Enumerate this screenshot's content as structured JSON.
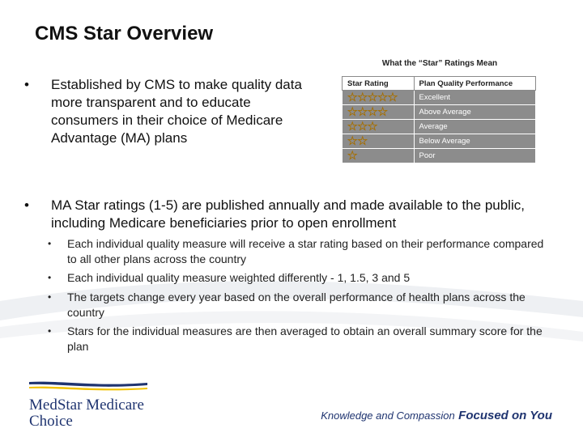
{
  "slide": {
    "title": "CMS Star Overview",
    "bullet_symbol": "•",
    "bullets": [
      {
        "text": "Established by CMS to make quality data more transparent and to educate consumers in their choice of Medicare Advantage (MA) plans"
      },
      {
        "text": "MA Star ratings (1-5) are published annually and made available to the public, including Medicare beneficiaries prior to open enrollment"
      }
    ],
    "sub_bullets": [
      "Each individual quality measure will receive a star rating based on their performance compared to all other plans across the country",
      "Each individual quality measure weighted differently - 1, 1.5, 3 and 5",
      "The targets change every year based on the overall performance of health plans across the country",
      "Stars for the individual measures are then averaged to obtain an overall summary score for the plan"
    ]
  },
  "ratings_table": {
    "heading": "What the “Star” Ratings Mean",
    "col_star": "Star Rating",
    "col_perf": "Plan Quality Performance",
    "star_color": "#f4b400",
    "row_color": "#8c8c8c",
    "rows": [
      {
        "stars": "☆☆☆☆☆",
        "star_count": 5,
        "label": "Excellent"
      },
      {
        "stars": "☆☆☆☆",
        "star_count": 4,
        "label": "Above Average"
      },
      {
        "stars": "☆☆☆",
        "star_count": 3,
        "label": "Average"
      },
      {
        "stars": "☆☆",
        "star_count": 2,
        "label": "Below Average"
      },
      {
        "stars": "☆",
        "star_count": 1,
        "label": "Poor"
      }
    ]
  },
  "footer": {
    "logo_line1": "MedStar Medicare",
    "logo_line2": "Choice",
    "tagline_light": "Knowledge and Compassion",
    "tagline_bold": "Focused on You",
    "brand_color": "#1f3470",
    "accent_color": "#f2c200"
  }
}
